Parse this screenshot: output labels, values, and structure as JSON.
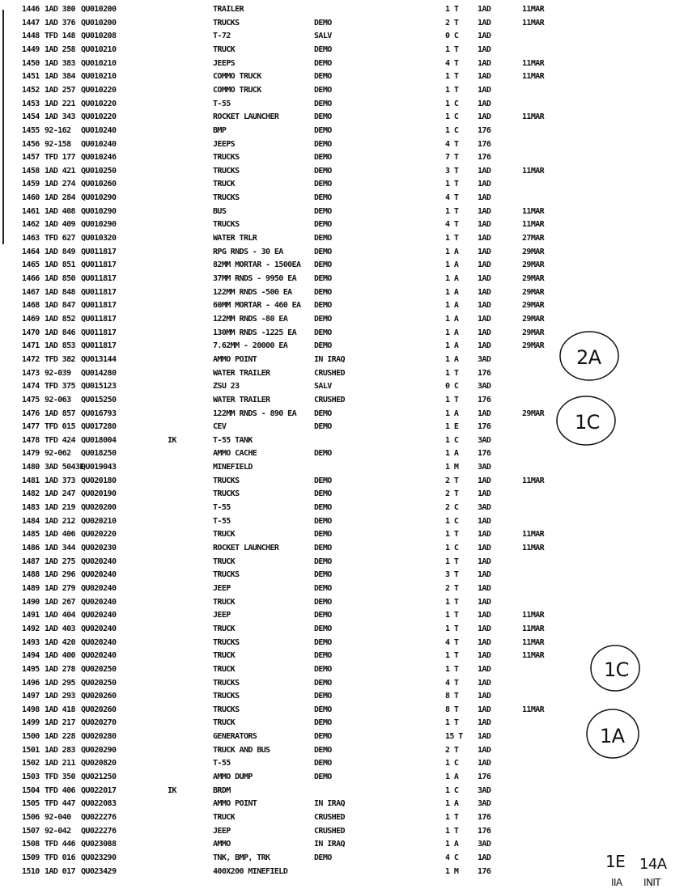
{
  "rows": [
    [
      "1446",
      "1AD 380",
      "QU010200",
      "",
      "TRAILER",
      "",
      "1 T",
      "1AD",
      "11MAR"
    ],
    [
      "1447",
      "1AD 376",
      "QU010200",
      "",
      "TRUCKS",
      "DEMO",
      "2 T",
      "1AD",
      "11MAR"
    ],
    [
      "1448",
      "TFD 148",
      "QU010208",
      "",
      "T-72",
      "SALV",
      "0 C",
      "1AD",
      ""
    ],
    [
      "1449",
      "1AD 258",
      "QU010210",
      "",
      "TRUCK",
      "DEMO",
      "1 T",
      "1AD",
      ""
    ],
    [
      "1450",
      "1AD 383",
      "QU010210",
      "",
      "JEEPS",
      "DEMO",
      "4 T",
      "1AD",
      "11MAR"
    ],
    [
      "1451",
      "1AD 384",
      "QU010210",
      "",
      "COMMO TRUCK",
      "DEMO",
      "1 T",
      "1AD",
      "11MAR"
    ],
    [
      "1452",
      "1AD 257",
      "QU010220",
      "",
      "COMMO TRUCK",
      "DEMO",
      "1 T",
      "1AD",
      ""
    ],
    [
      "1453",
      "1AD 221",
      "QU010220",
      "",
      "T-55",
      "DEMO",
      "1 C",
      "1AD",
      ""
    ],
    [
      "1454",
      "1AD 343",
      "QU010220",
      "",
      "ROCKET LAUNCHER",
      "DEMO",
      "1 C",
      "1AD",
      "11MAR"
    ],
    [
      "1455",
      "92-162",
      "QU010240",
      "",
      "BMP",
      "DEMO",
      "1 C",
      "176",
      ""
    ],
    [
      "1456",
      "92-158",
      "QU010240",
      "",
      "JEEPS",
      "DEMO",
      "4 T",
      "176",
      ""
    ],
    [
      "1457",
      "TFD 177",
      "QU010246",
      "",
      "TRUCKS",
      "DEMO",
      "7 T",
      "176",
      ""
    ],
    [
      "1458",
      "1AD 421",
      "QU010250",
      "",
      "TRUCKS",
      "DEMO",
      "3 T",
      "1AD",
      "11MAR"
    ],
    [
      "1459",
      "1AD 274",
      "QU010260",
      "",
      "TRUCK",
      "DEMO",
      "1 T",
      "1AD",
      ""
    ],
    [
      "1460",
      "1AD 284",
      "QU010290",
      "",
      "TRUCKS",
      "DEMO",
      "4 T",
      "1AD",
      ""
    ],
    [
      "1461",
      "1AD 408",
      "QU010290",
      "",
      "BUS",
      "DEMO",
      "1 T",
      "1AD",
      "11MAR"
    ],
    [
      "1462",
      "1AD 409",
      "QU010290",
      "",
      "TRUCKS",
      "DEMO",
      "4 T",
      "1AD",
      "11MAR"
    ],
    [
      "1463",
      "TFD 627",
      "QU010320",
      "",
      "WATER TRLR",
      "DEMO",
      "1 T",
      "1AD",
      "27MAR"
    ],
    [
      "1464",
      "1AD 849",
      "QU011817",
      "",
      "RPG RNDS - 30 EA",
      "DEMO",
      "1 A",
      "1AD",
      "29MAR"
    ],
    [
      "1465",
      "1AD 851",
      "QU011817",
      "",
      "82MM MORTAR - 1500EA",
      "DEMO",
      "1 A",
      "1AD",
      "29MAR"
    ],
    [
      "1466",
      "1AD 850",
      "QU011817",
      "",
      "37MM RNDS - 9950 EA",
      "DEMO",
      "1 A",
      "1AD",
      "29MAR"
    ],
    [
      "1467",
      "1AD 848",
      "QU011817",
      "",
      "122MM RNDS -500 EA",
      "DEMO",
      "1 A",
      "1AD",
      "29MAR"
    ],
    [
      "1468",
      "1AD 847",
      "QU011817",
      "",
      "60MM MORTAR - 460 EA",
      "DEMO",
      "1 A",
      "1AD",
      "29MAR"
    ],
    [
      "1469",
      "1AD 852",
      "QU011817",
      "",
      "122MM RNDS -80 EA",
      "DEMO",
      "1 A",
      "1AD",
      "29MAR"
    ],
    [
      "1470",
      "1AD 846",
      "QU011817",
      "",
      "130MM RNDS -1225 EA",
      "DEMO",
      "1 A",
      "1AD",
      "29MAR"
    ],
    [
      "1471",
      "1AD 853",
      "QU011817",
      "",
      "7.62MM - 20000 EA",
      "DEMO",
      "1 A",
      "1AD",
      "29MAR"
    ],
    [
      "1472",
      "TFD 382",
      "QU013144",
      "",
      "AMMO POINT",
      "IN IRAQ",
      "1 A",
      "3AD",
      ""
    ],
    [
      "1473",
      "92-039",
      "QU014280",
      "",
      "WATER TRAILER",
      "CRUSHED",
      "1 T",
      "176",
      ""
    ],
    [
      "1474",
      "TFD 375",
      "QU015123",
      "",
      "ZSU 23",
      "SALV",
      "0 C",
      "3AD",
      ""
    ],
    [
      "1475",
      "92-063",
      "QU015250",
      "",
      "WATER TRAILER",
      "CRUSHED",
      "1 T",
      "176",
      ""
    ],
    [
      "1476",
      "1AD 857",
      "QU016793",
      "",
      "122MM RNDS - 890 EA",
      "DEMO",
      "1 A",
      "1AD",
      "29MAR"
    ],
    [
      "1477",
      "TFD 015",
      "QU017280",
      "",
      "CEV",
      "DEMO",
      "1 E",
      "176",
      ""
    ],
    [
      "1478",
      "TFD 424",
      "QU018004",
      "IK",
      "T-55 TANK",
      "",
      "1 C",
      "3AD",
      ""
    ],
    [
      "1479",
      "92-062",
      "QU018250",
      "",
      "AMMO CACHE",
      "DEMO",
      "1 A",
      "176",
      ""
    ],
    [
      "1480",
      "3AD 5043E",
      "QU019043",
      "",
      "MINEFIELD",
      "",
      "1 M",
      "3AD",
      ""
    ],
    [
      "1481",
      "1AD 373",
      "QU020180",
      "",
      "TRUCKS",
      "DEMO",
      "2 T",
      "1AD",
      "11MAR"
    ],
    [
      "1482",
      "1AD 247",
      "QU020190",
      "",
      "TRUCKS",
      "DEMO",
      "2 T",
      "1AD",
      ""
    ],
    [
      "1483",
      "1AD 219",
      "QU020200",
      "",
      "T-55",
      "DEMO",
      "2 C",
      "3AD",
      ""
    ],
    [
      "1484",
      "1AD 212",
      "QU020210",
      "",
      "T-55",
      "DEMO",
      "1 C",
      "1AD",
      ""
    ],
    [
      "1485",
      "1AD 406",
      "QU020220",
      "",
      "TRUCK",
      "DEMO",
      "1 T",
      "1AD",
      "11MAR"
    ],
    [
      "1486",
      "1AD 344",
      "QU020230",
      "",
      "ROCKET LAUNCHER",
      "DEMO",
      "1 C",
      "1AD",
      "11MAR"
    ],
    [
      "1487",
      "1AD 275",
      "QU020240",
      "",
      "TRUCK",
      "DEMO",
      "1 T",
      "1AD",
      ""
    ],
    [
      "1488",
      "1AD 296",
      "QU020240",
      "",
      "TRUCKS",
      "DEMO",
      "3 T",
      "1AD",
      ""
    ],
    [
      "1489",
      "1AD 279",
      "QU020240",
      "",
      "JEEP",
      "DEMO",
      "2 T",
      "1AD",
      ""
    ],
    [
      "1490",
      "1AD 267",
      "QU020240",
      "",
      "TRUCK",
      "DEMO",
      "1 T",
      "1AD",
      ""
    ],
    [
      "1491",
      "1AD 404",
      "QU020240",
      "",
      "JEEP",
      "DEMO",
      "1 T",
      "1AD",
      "11MAR"
    ],
    [
      "1492",
      "1AD 403",
      "QU020240",
      "",
      "TRUCK",
      "DEMO",
      "1 T",
      "1AD",
      "11MAR"
    ],
    [
      "1493",
      "1AD 420",
      "QU020240",
      "",
      "TRUCKS",
      "DEMO",
      "4 T",
      "1AD",
      "11MAR"
    ],
    [
      "1494",
      "1AD 400",
      "QU020240",
      "",
      "TRUCK",
      "DEMO",
      "1 T",
      "1AD",
      "11MAR"
    ],
    [
      "1495",
      "1AD 278",
      "QU020250",
      "",
      "TRUCK",
      "DEMO",
      "1 T",
      "1AD",
      ""
    ],
    [
      "1496",
      "1AD 295",
      "QU020250",
      "",
      "TRUCKS",
      "DEMO",
      "4 T",
      "1AD",
      ""
    ],
    [
      "1497",
      "1AD 293",
      "QU020260",
      "",
      "TRUCKS",
      "DEMO",
      "8 T",
      "1AD",
      ""
    ],
    [
      "1498",
      "1AD 418",
      "QU020260",
      "",
      "TRUCKS",
      "DEMO",
      "8 T",
      "1AD",
      "11MAR"
    ],
    [
      "1499",
      "1AD 217",
      "QU020270",
      "",
      "TRUCK",
      "DEMO",
      "1 T",
      "1AD",
      ""
    ],
    [
      "1500",
      "1AD 228",
      "QU020280",
      "",
      "GENERATORS",
      "DEMO",
      "15 T",
      "1AD",
      ""
    ],
    [
      "1501",
      "1AD 283",
      "QU020290",
      "",
      "TRUCK AND BUS",
      "DEMO",
      "2 T",
      "1AD",
      ""
    ],
    [
      "1502",
      "1AD 211",
      "QU020820",
      "",
      "T-55",
      "DEMO",
      "1 C",
      "1AD",
      ""
    ],
    [
      "1503",
      "TFD 350",
      "QU021250",
      "",
      "AMMO DUMP",
      "DEMO",
      "1 A",
      "176",
      ""
    ],
    [
      "1504",
      "TFD 406",
      "QU022017",
      "IK",
      "BRDM",
      "",
      "1 C",
      "3AD",
      ""
    ],
    [
      "1505",
      "TFD 447",
      "QU022083",
      "",
      "AMMO POINT",
      "IN IRAQ",
      "1 A",
      "3AD",
      ""
    ],
    [
      "1506",
      "92-040",
      "QU022276",
      "",
      "TRUCK",
      "CRUSHED",
      "1 T",
      "176",
      ""
    ],
    [
      "1507",
      "92-042",
      "QU022276",
      "",
      "JEEP",
      "CRUSHED",
      "1 T",
      "176",
      ""
    ],
    [
      "1508",
      "TFD 446",
      "QU023088",
      "",
      "AMMO",
      "IN IRAQ",
      "1 A",
      "3AD",
      ""
    ],
    [
      "1509",
      "TFD 016",
      "QU023290",
      "",
      "TNK, BMP, TRK",
      "DEMO",
      "4 C",
      "1AD",
      ""
    ],
    [
      "1510",
      "1AD 017",
      "QU023429",
      "",
      "400X200 MINEFIELD",
      "",
      "1 M",
      "176",
      ""
    ]
  ],
  "annotations": {
    "circle1": "2A",
    "circle2": "1C",
    "circle3": "1C",
    "circle4": "1A",
    "bottom1": "1E",
    "bottom2": "14A",
    "bottom3": "IIA",
    "bottom4": "INIT"
  }
}
